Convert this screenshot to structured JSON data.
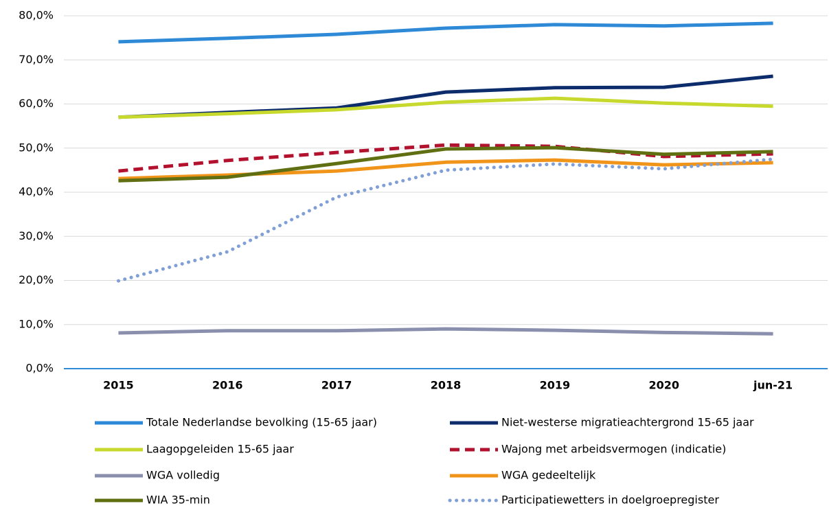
{
  "chart_data": {
    "type": "line",
    "categories": [
      "2015",
      "2016",
      "2017",
      "2018",
      "2019",
      "2020",
      "jun-21"
    ],
    "ylim": [
      0,
      80
    ],
    "yticks": [
      {
        "value": 0,
        "label": "0,0%"
      },
      {
        "value": 10,
        "label": "10,0%"
      },
      {
        "value": 20,
        "label": "20,0%"
      },
      {
        "value": 30,
        "label": "30,0%"
      },
      {
        "value": 40,
        "label": "40,0%"
      },
      {
        "value": 50,
        "label": "50,0%"
      },
      {
        "value": 60,
        "label": "60,0%"
      },
      {
        "value": 70,
        "label": "70,0%"
      },
      {
        "value": 80,
        "label": "80,0%"
      }
    ],
    "grid": true,
    "legend": "bottom",
    "series": [
      {
        "name": "Totale Nederlandse bevolking (15-65 jaar)",
        "color": "#2e8ad6",
        "style": "solid",
        "values": [
          74.1,
          74.9,
          75.8,
          77.2,
          78.0,
          77.7,
          78.3
        ]
      },
      {
        "name": "Niet-westerse migratieachtergrond 15-65 jaar",
        "color": "#0c2c6c",
        "style": "solid",
        "values": [
          57.0,
          58.1,
          59.1,
          62.7,
          63.7,
          63.8,
          66.3
        ]
      },
      {
        "name": "Laagopgeleiden 15-65 jaar",
        "color": "#c6d92c",
        "style": "solid",
        "values": [
          57.0,
          57.8,
          58.7,
          60.4,
          61.3,
          60.2,
          59.5
        ]
      },
      {
        "name": "Wajong met arbeidsvermogen (indicatie)",
        "color": "#b3122f",
        "style": "dashed",
        "values": [
          44.8,
          47.2,
          49.0,
          50.7,
          50.4,
          48.1,
          48.7
        ]
      },
      {
        "name": "WGA volledig",
        "color": "#8a8fae",
        "style": "solid",
        "values": [
          8.1,
          8.6,
          8.6,
          9.0,
          8.7,
          8.2,
          7.9
        ]
      },
      {
        "name": "WGA gedeeltelijk",
        "color": "#f0941a",
        "style": "solid",
        "values": [
          43.1,
          43.9,
          44.8,
          46.8,
          47.3,
          46.2,
          46.7
        ]
      },
      {
        "name": "WIA 35-min",
        "color": "#5f6f12",
        "style": "solid",
        "values": [
          42.6,
          43.4,
          46.5,
          49.8,
          50.1,
          48.6,
          49.2
        ]
      },
      {
        "name": "Participatiewetters in doelgroepregister",
        "color": "#7f9fd6",
        "style": "dotted",
        "values": [
          19.9,
          26.5,
          38.9,
          45.0,
          46.4,
          45.3,
          47.5
        ]
      }
    ]
  }
}
